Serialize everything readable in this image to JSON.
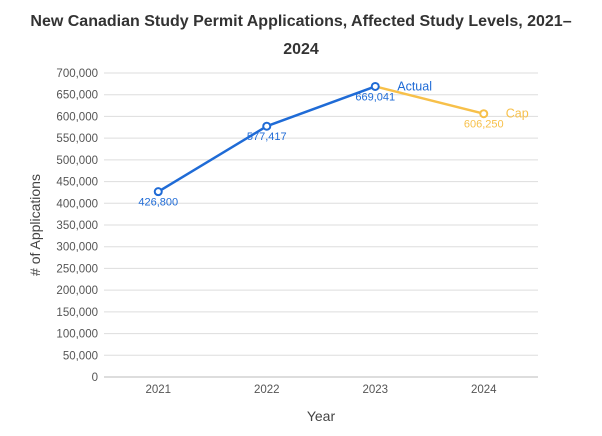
{
  "chart_data": {
    "type": "line",
    "title_line1": "New Canadian Study Permit Applications, Affected Study Levels, 2021–",
    "title_line2": "2024",
    "xlabel": "Year",
    "ylabel": "# of Applications",
    "ylim": [
      0,
      700000
    ],
    "ytick_step": 50000,
    "categories": [
      "2021",
      "2022",
      "2023",
      "2024"
    ],
    "grid": "horizontal",
    "series": [
      {
        "name": "Actual",
        "color": "#1f6bd6",
        "points": [
          {
            "x": "2021",
            "y": 426800,
            "label": "426,800"
          },
          {
            "x": "2022",
            "y": 577417,
            "label": "577,417"
          },
          {
            "x": "2023",
            "y": 669041,
            "label": "669,041"
          }
        ]
      },
      {
        "name": "Cap",
        "color": "#f7c04a",
        "points": [
          {
            "x": "2023",
            "y": 669041,
            "label": ""
          },
          {
            "x": "2024",
            "y": 606250,
            "label": "606,250"
          }
        ]
      }
    ]
  }
}
